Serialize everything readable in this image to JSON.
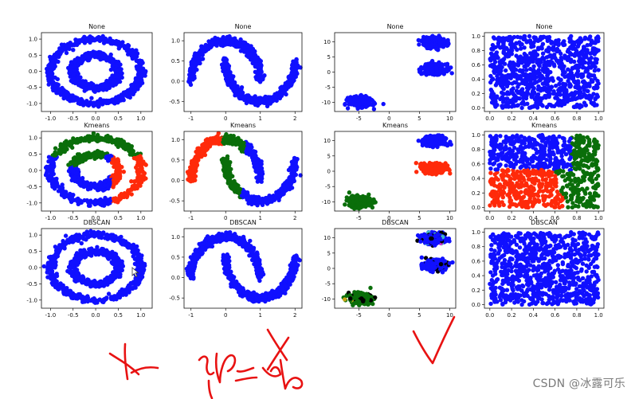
{
  "watermark": "CSDN @冰露可乐",
  "colors": {
    "blue": "#1010ff",
    "red": "#ff2a0a",
    "green": "#0a6e0a",
    "black": "#000000",
    "olive": "#c5a417",
    "magenta": "#d62cd6",
    "cyan": "#3fb6c6",
    "annotation": "#e81212"
  },
  "cursor_icon": "mouse-cursor-icon",
  "chart_data": [
    {
      "type": "scatter",
      "dataset": "circles",
      "title": "None",
      "xticks": [
        "-1.0",
        "-0.5",
        "0.0",
        "0.5",
        "1.0"
      ],
      "yticks": [
        "-1.0",
        "-0.5",
        "0.0",
        "0.5",
        "1.0"
      ],
      "xlim": [
        -1.2,
        1.25
      ],
      "ylim": [
        -1.25,
        1.2
      ],
      "colors": "all blue"
    },
    {
      "type": "scatter",
      "dataset": "moons",
      "title": "None",
      "xticks": [
        "-1",
        "0",
        "1",
        "2"
      ],
      "yticks": [
        "-0.5",
        "0.0",
        "0.5",
        "1.0"
      ],
      "xlim": [
        -1.2,
        2.2
      ],
      "ylim": [
        -0.75,
        1.2
      ],
      "colors": "all blue"
    },
    {
      "type": "scatter",
      "dataset": "blobs",
      "title": "None",
      "xticks": [
        "-5",
        "0",
        "5",
        "10"
      ],
      "yticks": [
        "-10",
        "-5",
        "0",
        "5",
        "10"
      ],
      "xlim": [
        -9,
        11
      ],
      "ylim": [
        -13,
        13
      ],
      "colors": "all blue"
    },
    {
      "type": "scatter",
      "dataset": "uniform",
      "title": "None",
      "xticks": [
        "0.0",
        "0.2",
        "0.4",
        "0.6",
        "0.8",
        "1.0"
      ],
      "yticks": [
        "0.0",
        "0.2",
        "0.4",
        "0.6",
        "0.8",
        "1.0"
      ],
      "xlim": [
        -0.05,
        1.05
      ],
      "ylim": [
        -0.05,
        1.05
      ],
      "colors": "all blue"
    },
    {
      "type": "scatter",
      "dataset": "circles",
      "title": "Kmeans",
      "xticks": [
        "-1.0",
        "-0.5",
        "0.0",
        "0.5",
        "1.0"
      ],
      "yticks": [
        "-1.0",
        "-0.5",
        "0.0",
        "0.5",
        "1.0"
      ],
      "xlim": [
        -1.2,
        1.25
      ],
      "ylim": [
        -1.25,
        1.2
      ],
      "colors": "3 clusters: green top, red right, blue rest"
    },
    {
      "type": "scatter",
      "dataset": "moons",
      "title": "Kmeans",
      "xticks": [
        "-1",
        "0",
        "1",
        "2"
      ],
      "yticks": [
        "-0.5",
        "0.0",
        "0.5",
        "1.0"
      ],
      "xlim": [
        -1.2,
        2.2
      ],
      "ylim": [
        -0.75,
        1.2
      ],
      "colors": "3 clusters: red left, green middle, blue right"
    },
    {
      "type": "scatter",
      "dataset": "blobs",
      "title": "Kmeans",
      "xticks": [
        "-5",
        "0",
        "5",
        "10"
      ],
      "yticks": [
        "-10",
        "-5",
        "0",
        "5",
        "10"
      ],
      "xlim": [
        -9,
        11
      ],
      "ylim": [
        -13,
        13
      ],
      "colors": "3 clusters: blue top, red middle, green bottom-left"
    },
    {
      "type": "scatter",
      "dataset": "uniform",
      "title": "Kmeans",
      "xticks": [
        "0.0",
        "0.2",
        "0.4",
        "0.6",
        "0.8",
        "1.0"
      ],
      "yticks": [
        "0.0",
        "0.2",
        "0.4",
        "0.6",
        "0.8",
        "1.0"
      ],
      "xlim": [
        -0.05,
        1.05
      ],
      "ylim": [
        -0.05,
        1.05
      ],
      "colors": "3 clusters: blue top-left, red bottom-left, green right"
    },
    {
      "type": "scatter",
      "dataset": "circles",
      "title": "DBSCAN",
      "xticks": [
        "-1.0",
        "-0.5",
        "0.0",
        "0.5",
        "1.0"
      ],
      "yticks": [
        "-1.0",
        "-0.5",
        "0.0",
        "0.5",
        "1.0"
      ],
      "xlim": [
        -1.2,
        1.25
      ],
      "ylim": [
        -1.25,
        1.2
      ],
      "colors": "all blue"
    },
    {
      "type": "scatter",
      "dataset": "moons",
      "title": "DBSCAN",
      "xticks": [
        "-1",
        "0",
        "1",
        "2"
      ],
      "yticks": [
        "-0.5",
        "0.0",
        "0.5",
        "1.0"
      ],
      "xlim": [
        -1.2,
        2.2
      ],
      "ylim": [
        -0.75,
        1.2
      ],
      "colors": "all blue"
    },
    {
      "type": "scatter",
      "dataset": "blobs",
      "title": "DBSCAN",
      "xticks": [
        "-5",
        "0",
        "5",
        "10"
      ],
      "yticks": [
        "-10",
        "-5",
        "0",
        "5",
        "10"
      ],
      "xlim": [
        -9,
        11
      ],
      "ylim": [
        -13,
        13
      ],
      "colors": "blue and green clusters with black noise and small olive, magenta, cyan clusters"
    },
    {
      "type": "scatter",
      "dataset": "uniform",
      "title": "DBSCAN",
      "xticks": [
        "0.0",
        "0.2",
        "0.4",
        "0.6",
        "0.8",
        "1.0"
      ],
      "yticks": [
        "0.0",
        "0.2",
        "0.4",
        "0.6",
        "0.8",
        "1.0"
      ],
      "xlim": [
        -0.05,
        1.05
      ],
      "ylim": [
        -0.05,
        1.05
      ],
      "colors": "all blue"
    }
  ]
}
